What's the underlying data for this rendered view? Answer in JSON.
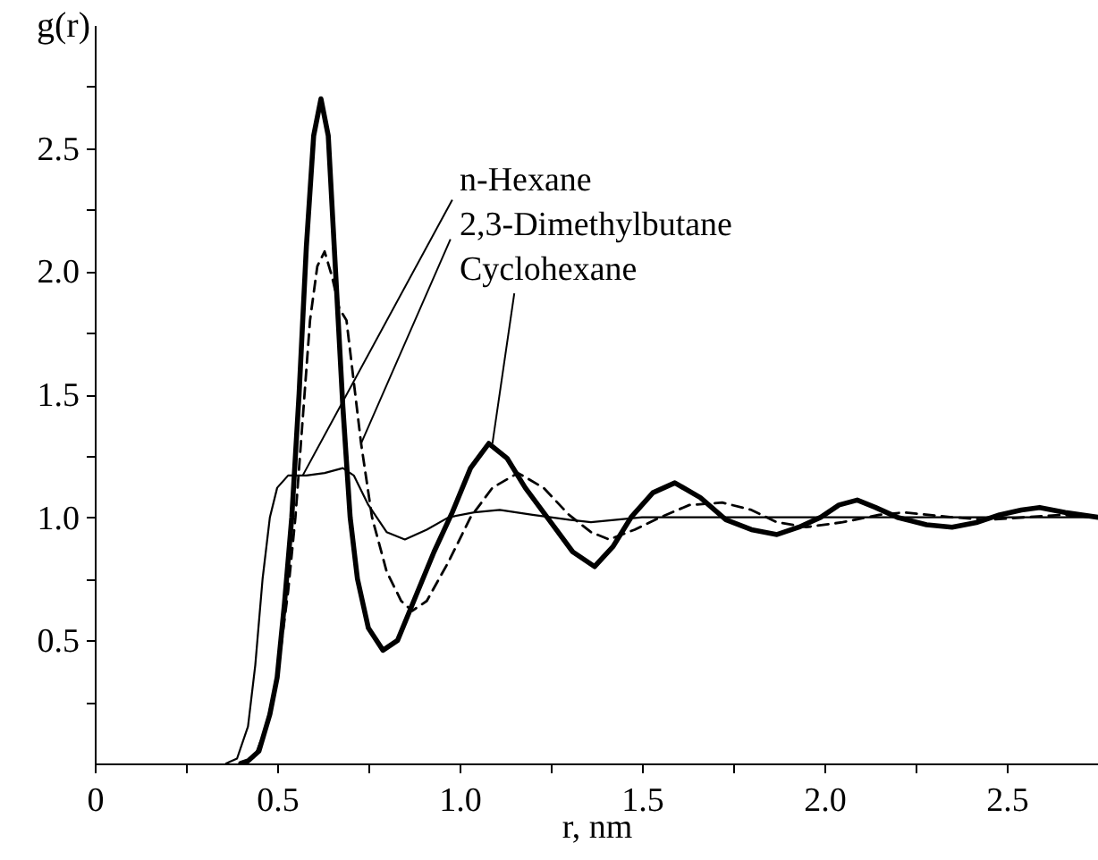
{
  "chart_data": {
    "type": "line",
    "xlabel": "r, nm",
    "ylabel": "g(r)",
    "xlim": [
      0,
      2.75
    ],
    "ylim": [
      0,
      3
    ],
    "xticks": [
      0,
      {
        "value": 0.25,
        "label": null
      },
      0.5,
      {
        "value": 0.75,
        "label": null
      },
      {
        "value": 1,
        "label": "1.0"
      },
      {
        "value": 1.25,
        "label": null
      },
      1.5,
      {
        "value": 1.75,
        "label": null
      },
      {
        "value": 2,
        "label": "2.0"
      },
      {
        "value": 2.25,
        "label": null
      },
      2.5
    ],
    "yticks": [
      {
        "value": 0.25,
        "label": null
      },
      0.5,
      {
        "value": 0.75,
        "label": null
      },
      {
        "value": 1,
        "label": "1.0"
      },
      {
        "value": 1.25,
        "label": null
      },
      1.5,
      {
        "value": 1.75,
        "label": null
      },
      {
        "value": 2,
        "label": "2.0"
      },
      {
        "value": 2.25,
        "label": null
      },
      2.5,
      {
        "value": 2.75,
        "label": null
      }
    ],
    "series": [
      {
        "color": "#000000",
        "line_style": "solid",
        "x": [
          0.36,
          0.39,
          0.42,
          0.44,
          0.46,
          0.48,
          0.5,
          0.53,
          0.58,
          0.63,
          0.68,
          0.71,
          0.75,
          0.8,
          0.85,
          0.91,
          0.97,
          1.04,
          1.11,
          1.2,
          1.3,
          1.36,
          1.5,
          1.75,
          2.0,
          2.25,
          2.5,
          2.75
        ],
        "values": [
          0,
          0.02,
          0.15,
          0.4,
          0.75,
          1.0,
          1.12,
          1.17,
          1.17,
          1.18,
          1.2,
          1.17,
          1.05,
          0.94,
          0.91,
          0.95,
          1.0,
          1.02,
          1.03,
          1.01,
          0.99,
          0.98,
          1.0,
          1.0,
          1.0,
          1.0,
          1.0,
          1.0
        ]
      },
      {
        "color": "#000000",
        "line_style": "dashed",
        "x": [
          0.41,
          0.44,
          0.47,
          0.5,
          0.53,
          0.55,
          0.57,
          0.59,
          0.61,
          0.63,
          0.65,
          0.67,
          0.69,
          0.71,
          0.73,
          0.76,
          0.8,
          0.84,
          0.87,
          0.91,
          0.97,
          1.03,
          1.09,
          1.16,
          1.23,
          1.3,
          1.36,
          1.41,
          1.48,
          1.55,
          1.63,
          1.72,
          1.8,
          1.87,
          1.95,
          2.05,
          2.15,
          2.22,
          2.35,
          2.45,
          2.55,
          2.65,
          2.75
        ],
        "values": [
          0,
          0.03,
          0.15,
          0.35,
          0.7,
          1.0,
          1.4,
          1.8,
          2.02,
          2.08,
          1.98,
          1.85,
          1.8,
          1.55,
          1.3,
          1.0,
          0.78,
          0.66,
          0.62,
          0.66,
          0.82,
          1.0,
          1.12,
          1.18,
          1.12,
          1.01,
          0.94,
          0.91,
          0.95,
          1.0,
          1.05,
          1.06,
          1.03,
          0.98,
          0.96,
          0.98,
          1.01,
          1.02,
          1.0,
          0.99,
          1.0,
          1.01,
          1.0
        ]
      },
      {
        "color": "#000000",
        "line_style": "solid",
        "x": [
          0.4,
          0.42,
          0.45,
          0.48,
          0.5,
          0.52,
          0.54,
          0.56,
          0.58,
          0.6,
          0.62,
          0.64,
          0.66,
          0.68,
          0.7,
          0.72,
          0.75,
          0.79,
          0.83,
          0.88,
          0.93,
          0.98,
          1.03,
          1.08,
          1.13,
          1.18,
          1.245,
          1.31,
          1.37,
          1.42,
          1.47,
          1.53,
          1.59,
          1.66,
          1.73,
          1.8,
          1.87,
          1.93,
          1.99,
          2.04,
          2.09,
          2.14,
          2.2,
          2.28,
          2.35,
          2.42,
          2.48,
          2.54,
          2.59,
          2.66,
          2.75
        ],
        "values": [
          0,
          0.01,
          0.05,
          0.2,
          0.35,
          0.65,
          1.0,
          1.5,
          2.1,
          2.55,
          2.7,
          2.55,
          2.0,
          1.45,
          1.0,
          0.75,
          0.55,
          0.46,
          0.5,
          0.68,
          0.86,
          1.02,
          1.2,
          1.3,
          1.24,
          1.12,
          0.99,
          0.86,
          0.8,
          0.88,
          1.0,
          1.1,
          1.14,
          1.08,
          0.99,
          0.95,
          0.93,
          0.96,
          1.0,
          1.05,
          1.07,
          1.04,
          1.0,
          0.97,
          0.96,
          0.98,
          1.01,
          1.03,
          1.04,
          1.02,
          1.0
        ]
      }
    ],
    "annotations": [
      {
        "text": "n-Hexane",
        "x": 0.57,
        "y": 1.17
      },
      {
        "text": "2,3-Dimethylbutane",
        "x": 0.73,
        "y": 1.3
      },
      {
        "text": "Cyclohexane",
        "x": 1.09,
        "y": 1.3
      }
    ]
  }
}
